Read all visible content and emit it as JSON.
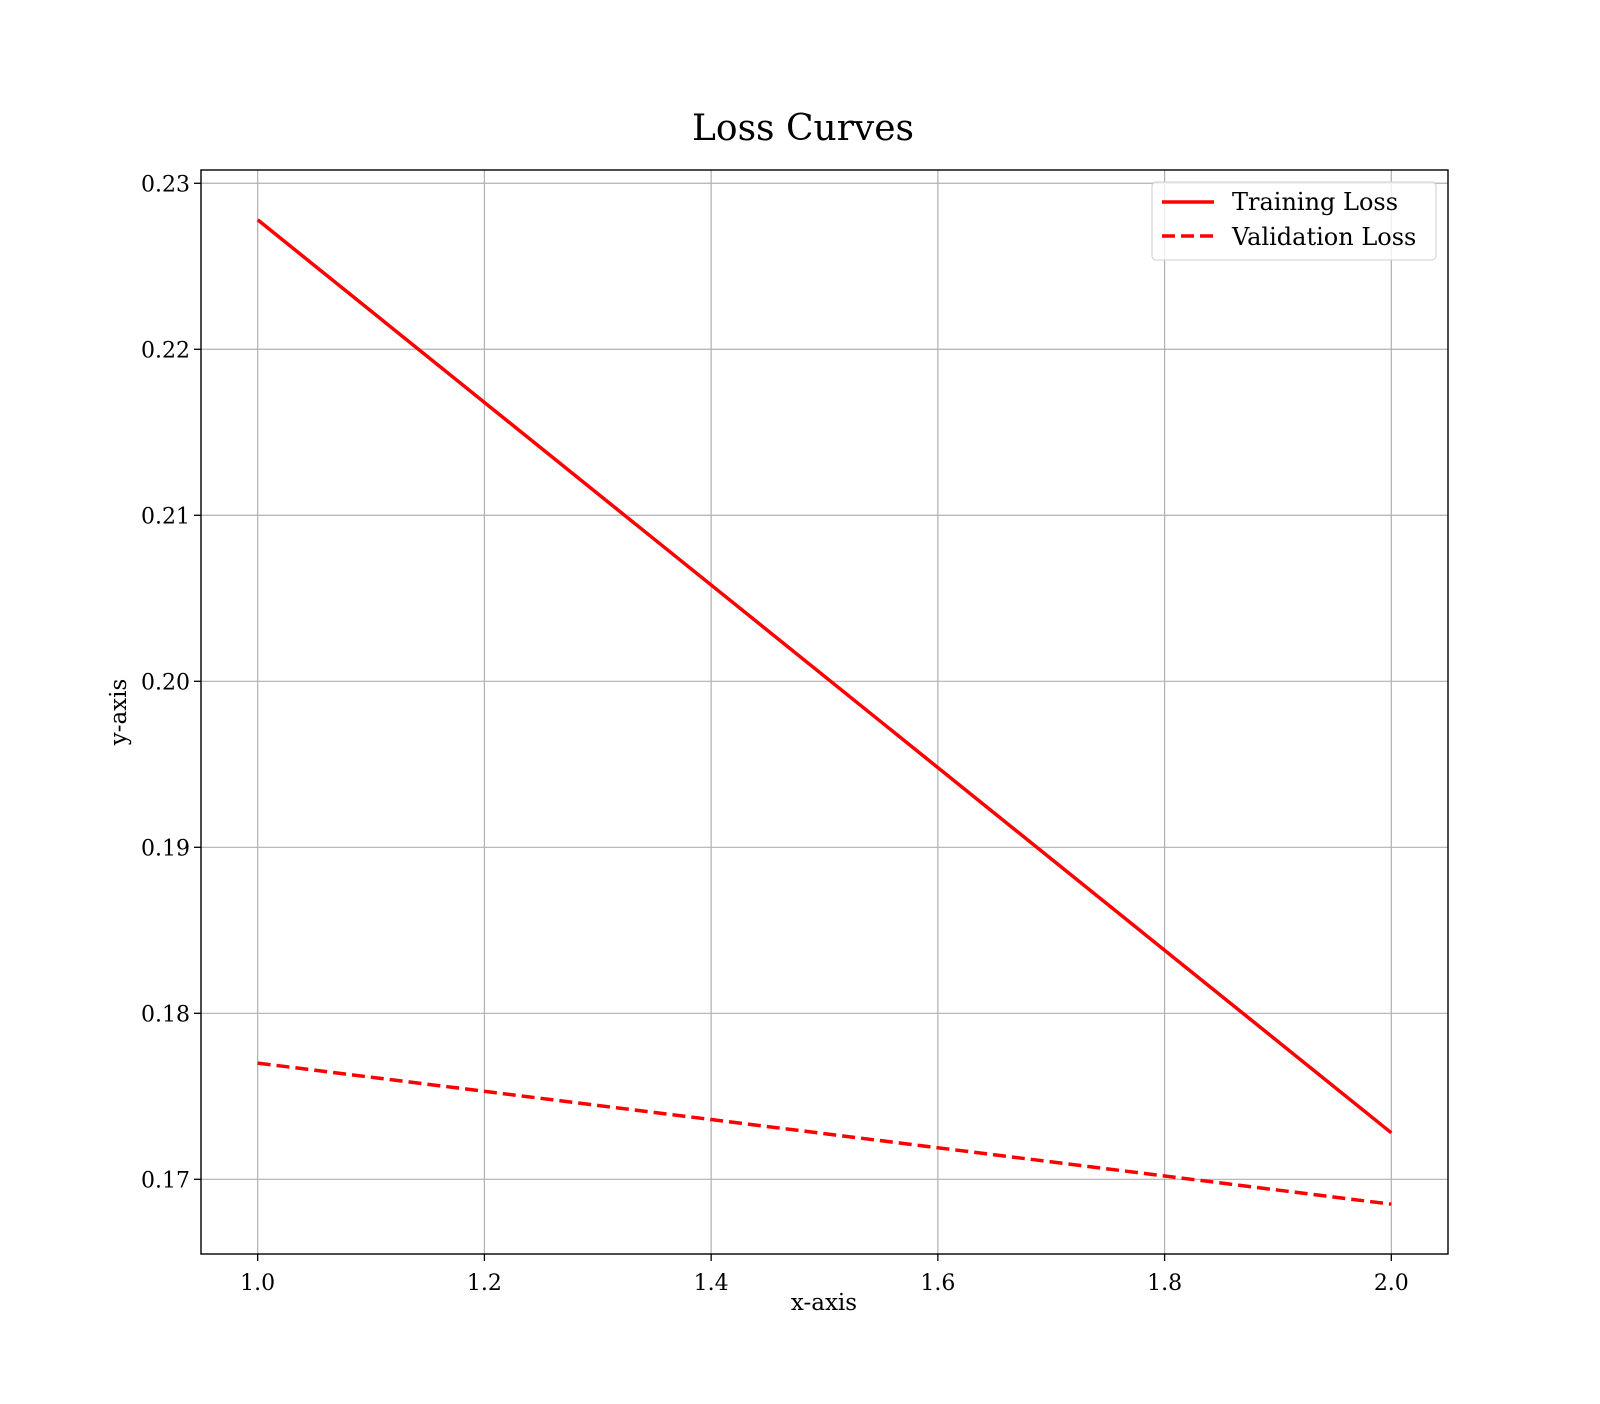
{
  "chart_data": {
    "type": "line",
    "title": "Loss Curves",
    "xlabel": "x-axis",
    "ylabel": "y-axis",
    "xlim": [
      0.95,
      2.05
    ],
    "ylim": [
      0.1655,
      0.2308
    ],
    "x_ticks": [
      1.0,
      1.2,
      1.4,
      1.6,
      1.8,
      2.0
    ],
    "x_tick_labels": [
      "1.0",
      "1.2",
      "1.4",
      "1.6",
      "1.8",
      "2.0"
    ],
    "y_ticks": [
      0.17,
      0.18,
      0.19,
      0.2,
      0.21,
      0.22,
      0.23
    ],
    "y_tick_labels": [
      "0.17",
      "0.18",
      "0.19",
      "0.20",
      "0.21",
      "0.22",
      "0.23"
    ],
    "grid": true,
    "legend_position": "top-right",
    "series": [
      {
        "name": "Training Loss",
        "x": [
          1.0,
          2.0
        ],
        "y": [
          0.2278,
          0.1728
        ],
        "color": "#ff0000",
        "line_style": "solid"
      },
      {
        "name": "Validation Loss",
        "x": [
          1.0,
          2.0
        ],
        "y": [
          0.177,
          0.1685
        ],
        "color": "#ff0000",
        "line_style": "dashed"
      }
    ]
  }
}
